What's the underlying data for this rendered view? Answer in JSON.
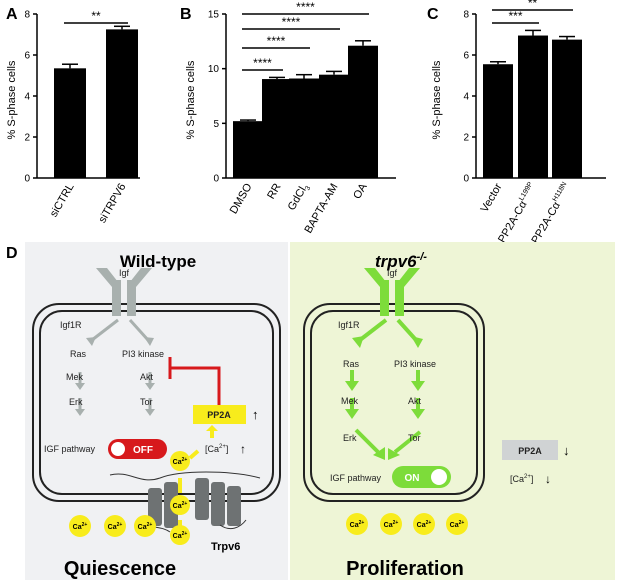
{
  "panels": {
    "A": "A",
    "B": "B",
    "C": "C",
    "D": "D"
  },
  "chart_data": [
    {
      "type": "bar",
      "ylabel": "% S-phase cells",
      "ylim": [
        0,
        8
      ],
      "yticks": [
        0,
        2,
        4,
        6,
        8
      ],
      "categories": [
        "siCTRL",
        "siTRPV6"
      ],
      "values": [
        5.35,
        7.25
      ],
      "errors": [
        0.2,
        0.15
      ],
      "significance": [
        {
          "from": 0,
          "to": 1,
          "label": "**"
        }
      ]
    },
    {
      "type": "bar",
      "ylabel": "% S-phase cells",
      "ylim": [
        0,
        15
      ],
      "yticks": [
        0,
        5,
        10,
        15
      ],
      "categories": [
        "DMSO",
        "RR",
        "GdCl3",
        "BAPTA-AM",
        "OA"
      ],
      "category_display": [
        {
          "main": "DMSO",
          "sub": ""
        },
        {
          "main": "RR",
          "sub": ""
        },
        {
          "main": "GdCl",
          "sub": "3"
        },
        {
          "main": "BAPTA-AM",
          "sub": ""
        },
        {
          "main": "OA",
          "sub": ""
        }
      ],
      "values": [
        5.2,
        9.05,
        9.1,
        9.45,
        12.1
      ],
      "errors": [
        0.1,
        0.15,
        0.35,
        0.3,
        0.45
      ],
      "significance": [
        {
          "from": 0,
          "to": 1,
          "label": "****"
        },
        {
          "from": 0,
          "to": 2,
          "label": "****"
        },
        {
          "from": 0,
          "to": 3,
          "label": "****"
        },
        {
          "from": 0,
          "to": 4,
          "label": "****"
        }
      ]
    },
    {
      "type": "bar",
      "ylabel": "% S-phase cells",
      "ylim": [
        0,
        8
      ],
      "yticks": [
        0,
        2,
        4,
        6,
        8
      ],
      "categories": [
        "Vector",
        "PP2A-Cα L199P",
        "PP2A-Cα H118N"
      ],
      "category_display": [
        {
          "main": "Vector",
          "sup": ""
        },
        {
          "main": "PP2A-Cα",
          "sup": "L199P"
        },
        {
          "main": "PP2A-Cα",
          "sup": "H118N"
        }
      ],
      "values": [
        5.55,
        6.95,
        6.75
      ],
      "errors": [
        0.12,
        0.25,
        0.15
      ],
      "significance": [
        {
          "from": 0,
          "to": 1,
          "label": "***"
        },
        {
          "from": 0,
          "to": 2,
          "label": "**"
        }
      ]
    }
  ],
  "diagram": {
    "left": {
      "title": "Wild-type",
      "igf": "Igf",
      "receptor": "Igf1R",
      "ras": "Ras",
      "mek": "Mek",
      "erk": "Erk",
      "pi3k": "PI3 kinase",
      "akt": "Akt",
      "tor": "Tor",
      "pp2a": "PP2A",
      "pp2a_arrow": "↑",
      "ca_in": "[Ca",
      "ca_sup": "2+",
      "ca_close": "]",
      "ca_arrow": "↑",
      "pathway": "IGF pathway",
      "switch": "OFF",
      "ion": "Ca",
      "ion_sup": "2+",
      "channel": "Trpv6",
      "footer": "Quiescence"
    },
    "right": {
      "title": "trpv6",
      "title_sup": "-/-",
      "igf": "Igf",
      "receptor": "Igf1R",
      "ras": "Ras",
      "mek": "Mek",
      "erk": "Erk",
      "pi3k": "PI3 kinase",
      "akt": "Akt",
      "tor": "Tor",
      "pp2a": "PP2A",
      "pp2a_arrow": "↓",
      "ca_in": "[Ca",
      "ca_sup": "2+",
      "ca_close": "]",
      "ca_arrow": "↓",
      "pathway": "IGF pathway",
      "switch": "ON",
      "ion": "Ca",
      "ion_sup": "2+",
      "footer": "Proliferation"
    },
    "colors": {
      "left_bg": "#f0f1f3",
      "right_bg": "#eef5d6",
      "green": "#7ddc3a",
      "grey": "#a8b0ae",
      "red": "#d7191c",
      "yellow": "#f8ec1c",
      "channel": "#6e7273"
    }
  }
}
